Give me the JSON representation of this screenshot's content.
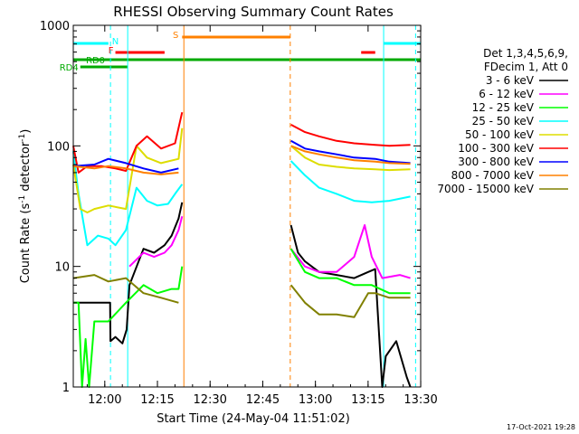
{
  "chart_data": {
    "type": "line",
    "title": "RHESSI Observing Summary Count Rates",
    "xlabel": "Start Time (24-May-04 11:51:02)",
    "ylabel_main": "Count Rate (s",
    "ylabel_sup1": "-1",
    "ylabel_mid": " detector",
    "ylabel_sup2": "-1",
    "ylabel_end": ")",
    "yscale": "log",
    "ylim": [
      1,
      1000
    ],
    "xlim_minutes": [
      0,
      98.95
    ],
    "x_ticks": [
      {
        "label": "12:00",
        "min": 8.97
      },
      {
        "label": "12:15",
        "min": 23.97
      },
      {
        "label": "12:30",
        "min": 38.97
      },
      {
        "label": "12:45",
        "min": 53.97
      },
      {
        "label": "13:00",
        "min": 68.97
      },
      {
        "label": "13:15",
        "min": 83.97
      },
      {
        "label": "13:30",
        "min": 98.97
      }
    ],
    "y_ticks": [
      {
        "label": "1",
        "value": 1
      },
      {
        "label": "10",
        "value": 10
      },
      {
        "label": "100",
        "value": 100
      },
      {
        "label": "1000",
        "value": 1000
      }
    ],
    "legend_header": [
      "Det 1,3,4,5,6,9,",
      "FDecim 1, Att 0"
    ],
    "series": [
      {
        "name": "3 - 6 keV",
        "color": "#000000",
        "values": [
          [
            0,
            5
          ],
          [
            10.5,
            5
          ],
          [
            10.6,
            2.4
          ],
          [
            12,
            2.6
          ],
          [
            14,
            2.3
          ],
          [
            15.2,
            3
          ],
          [
            16,
            7
          ],
          [
            20,
            14
          ],
          [
            23,
            13
          ],
          [
            26,
            15
          ],
          [
            28,
            18
          ],
          [
            30,
            25
          ],
          [
            31,
            34
          ],
          null,
          [
            62,
            22
          ],
          [
            64,
            13
          ],
          [
            66,
            11
          ],
          [
            70,
            9
          ],
          [
            75,
            8.5
          ],
          [
            80,
            8
          ],
          [
            84,
            9
          ],
          [
            86,
            9.5
          ],
          [
            88,
            1
          ],
          [
            89,
            1.8
          ],
          [
            92,
            2.4
          ],
          [
            95,
            1.2
          ],
          [
            96,
            1
          ]
        ]
      },
      {
        "name": "6 - 12 keV",
        "color": "#ff00ff",
        "values": [
          [
            16,
            10
          ],
          [
            20,
            13
          ],
          [
            23,
            12
          ],
          [
            26,
            13
          ],
          [
            28,
            15
          ],
          [
            30,
            20
          ],
          [
            31,
            26
          ],
          null,
          [
            62,
            14
          ],
          [
            66,
            10
          ],
          [
            70,
            9
          ],
          [
            75,
            9
          ],
          [
            80,
            12
          ],
          [
            83,
            22
          ],
          [
            85,
            12
          ],
          [
            88,
            8
          ],
          [
            93,
            8.5
          ],
          [
            96,
            8
          ]
        ]
      },
      {
        "name": "12 - 25 keV",
        "color": "#00ff00",
        "values": [
          [
            0,
            5
          ],
          [
            1.5,
            5
          ],
          [
            2.5,
            1
          ],
          [
            3.5,
            2.5
          ],
          [
            4.5,
            1
          ],
          [
            6,
            3.5
          ],
          [
            10,
            3.5
          ],
          [
            15,
            5
          ],
          [
            20,
            7
          ],
          [
            24,
            6
          ],
          [
            28,
            6.5
          ],
          [
            30,
            6.5
          ],
          [
            31,
            10
          ],
          null,
          [
            62,
            14
          ],
          [
            66,
            9
          ],
          [
            70,
            8
          ],
          [
            75,
            8
          ],
          [
            80,
            7
          ],
          [
            85,
            7
          ],
          [
            90,
            6
          ],
          [
            96,
            6
          ]
        ]
      },
      {
        "name": "25 - 50 keV",
        "color": "#00ffff",
        "values": [
          [
            0,
            90
          ],
          [
            1.5,
            40
          ],
          [
            4,
            15
          ],
          [
            7,
            18
          ],
          [
            10,
            17
          ],
          [
            12,
            15
          ],
          [
            15,
            20
          ],
          [
            18,
            45
          ],
          [
            21,
            35
          ],
          [
            24,
            32
          ],
          [
            27,
            33
          ],
          [
            29,
            40
          ],
          [
            31,
            48
          ],
          null,
          [
            62,
            75
          ],
          [
            66,
            57
          ],
          [
            70,
            45
          ],
          [
            75,
            40
          ],
          [
            80,
            35
          ],
          [
            85,
            34
          ],
          [
            90,
            35
          ],
          [
            96,
            38
          ]
        ]
      },
      {
        "name": "50 - 100 keV",
        "color": "#dddd00",
        "values": [
          [
            0,
            70
          ],
          [
            2,
            30
          ],
          [
            4,
            28
          ],
          [
            6,
            30
          ],
          [
            10,
            32
          ],
          [
            15,
            30
          ],
          [
            18,
            100
          ],
          [
            21,
            80
          ],
          [
            25,
            72
          ],
          [
            30,
            78
          ],
          [
            31,
            140
          ],
          null,
          [
            62,
            100
          ],
          [
            66,
            80
          ],
          [
            70,
            70
          ],
          [
            75,
            67
          ],
          [
            80,
            65
          ],
          [
            86,
            64
          ],
          [
            90,
            63
          ],
          [
            96,
            64
          ]
        ]
      },
      {
        "name": "100 - 300 keV",
        "color": "#ff0000",
        "values": [
          [
            0,
            100
          ],
          [
            1.5,
            60
          ],
          [
            4,
            68
          ],
          [
            8,
            68
          ],
          [
            12,
            65
          ],
          [
            15,
            62
          ],
          [
            18,
            100
          ],
          [
            21,
            120
          ],
          [
            25,
            95
          ],
          [
            29,
            105
          ],
          [
            31,
            190
          ],
          null,
          [
            62,
            150
          ],
          [
            66,
            130
          ],
          [
            70,
            120
          ],
          [
            75,
            110
          ],
          [
            80,
            105
          ],
          [
            86,
            102
          ],
          [
            90,
            100
          ],
          [
            96,
            102
          ]
        ]
      },
      {
        "name": "300 - 800 keV",
        "color": "#0000ff",
        "values": [
          [
            0,
            68
          ],
          [
            6,
            70
          ],
          [
            10,
            78
          ],
          [
            15,
            72
          ],
          [
            20,
            65
          ],
          [
            25,
            60
          ],
          [
            30,
            65
          ],
          null,
          [
            62,
            110
          ],
          [
            66,
            95
          ],
          [
            70,
            90
          ],
          [
            75,
            85
          ],
          [
            80,
            80
          ],
          [
            86,
            78
          ],
          [
            90,
            74
          ],
          [
            96,
            72
          ]
        ]
      },
      {
        "name": "800 - 7000 keV",
        "color": "#ff8000",
        "values": [
          [
            0,
            68
          ],
          [
            6,
            65
          ],
          [
            10,
            68
          ],
          [
            15,
            65
          ],
          [
            20,
            60
          ],
          [
            25,
            58
          ],
          [
            30,
            60
          ],
          null,
          [
            62,
            100
          ],
          [
            66,
            90
          ],
          [
            70,
            85
          ],
          [
            75,
            80
          ],
          [
            80,
            76
          ],
          [
            86,
            74
          ],
          [
            90,
            72
          ],
          [
            96,
            71
          ]
        ]
      },
      {
        "name": "7000 - 15000 keV",
        "color": "#808000",
        "values": [
          [
            0,
            8
          ],
          [
            6,
            8.5
          ],
          [
            10,
            7.5
          ],
          [
            15,
            8
          ],
          [
            20,
            6
          ],
          [
            25,
            5.5
          ],
          [
            30,
            5
          ],
          null,
          [
            62,
            7
          ],
          [
            66,
            5
          ],
          [
            70,
            4
          ],
          [
            75,
            4
          ],
          [
            80,
            3.8
          ],
          [
            84,
            6
          ],
          [
            86,
            6
          ],
          [
            90,
            5.5
          ],
          [
            96,
            5.5
          ]
        ]
      }
    ],
    "flags": [
      {
        "label": "N",
        "color": "#00ffff",
        "segments": [
          [
            0,
            10
          ]
        ],
        "level": 1
      },
      {
        "label": "N",
        "color": "#00ffff",
        "segments": [
          [
            88.5,
            99
          ]
        ],
        "level": 1,
        "hide_label": true
      },
      {
        "label": "S",
        "color": "#ff8000",
        "segments": [
          [
            31,
            61.8
          ]
        ],
        "level": 2
      },
      {
        "label": "F",
        "color": "#ff0000",
        "segments": [
          [
            12,
            26
          ],
          [
            82,
            86
          ]
        ],
        "level": 3
      },
      {
        "label": "RD0",
        "color": "#00aa00",
        "segments": [
          [
            0,
            99
          ]
        ],
        "level": 4
      },
      {
        "label": "RD4",
        "color": "#00aa00",
        "segments": [
          [
            2,
            15.5
          ]
        ],
        "level": 5
      }
    ],
    "vlines": [
      {
        "min": 10.6,
        "color": "#00ffff",
        "style": "dash"
      },
      {
        "min": 15.5,
        "color": "#00ffff",
        "style": "solid"
      },
      {
        "min": 31.5,
        "color": "#ff8000",
        "style": "solid"
      },
      {
        "min": 61.8,
        "color": "#ff8000",
        "style": "dash"
      },
      {
        "min": 88.4,
        "color": "#00ffff",
        "style": "solid"
      },
      {
        "min": 97.5,
        "color": "#00ffff",
        "style": "dash"
      }
    ],
    "footer_date": "17-Oct-2021 19:28",
    "grid": false,
    "legend_position": "right"
  }
}
